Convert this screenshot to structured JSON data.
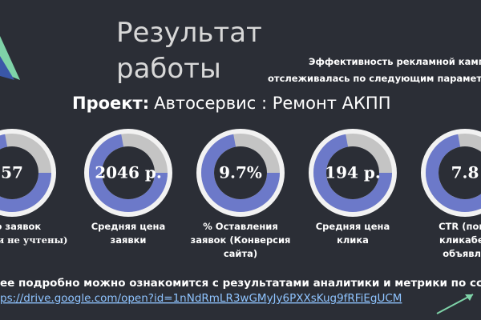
{
  "header": {
    "title": [
      "Результат",
      "работы"
    ],
    "description": [
      "Эффективность рекламной камп",
      "отслеживалась по следующим парамет"
    ]
  },
  "project": {
    "label": "Проект:",
    "name": "Автосервис : Ремонт АКПП"
  },
  "metrics": [
    {
      "value": "57",
      "label": [
        "ено заявок",
        "е звонки не учтены)"
      ]
    },
    {
      "value": "2046 р.",
      "label": [
        "Средняя цена",
        "заявки"
      ]
    },
    {
      "value": "9.7%",
      "label": [
        "% Оставления",
        "заявок (Конверсия",
        "сайта)"
      ]
    },
    {
      "value": "194 р.",
      "label": [
        "Средняя цена",
        "клика"
      ]
    },
    {
      "value": "7.8",
      "label": [
        "CTR (пока",
        "кликабел",
        "объявле"
      ]
    }
  ],
  "footer": {
    "text": "ее подробно можно ознакомится с результатами аналитики  и метрики по ссыл",
    "link": "ps://drive.google.com/open?id=1nNdRmLR3wGMyJy6PXXsKug9fRFiEgUCM"
  }
}
